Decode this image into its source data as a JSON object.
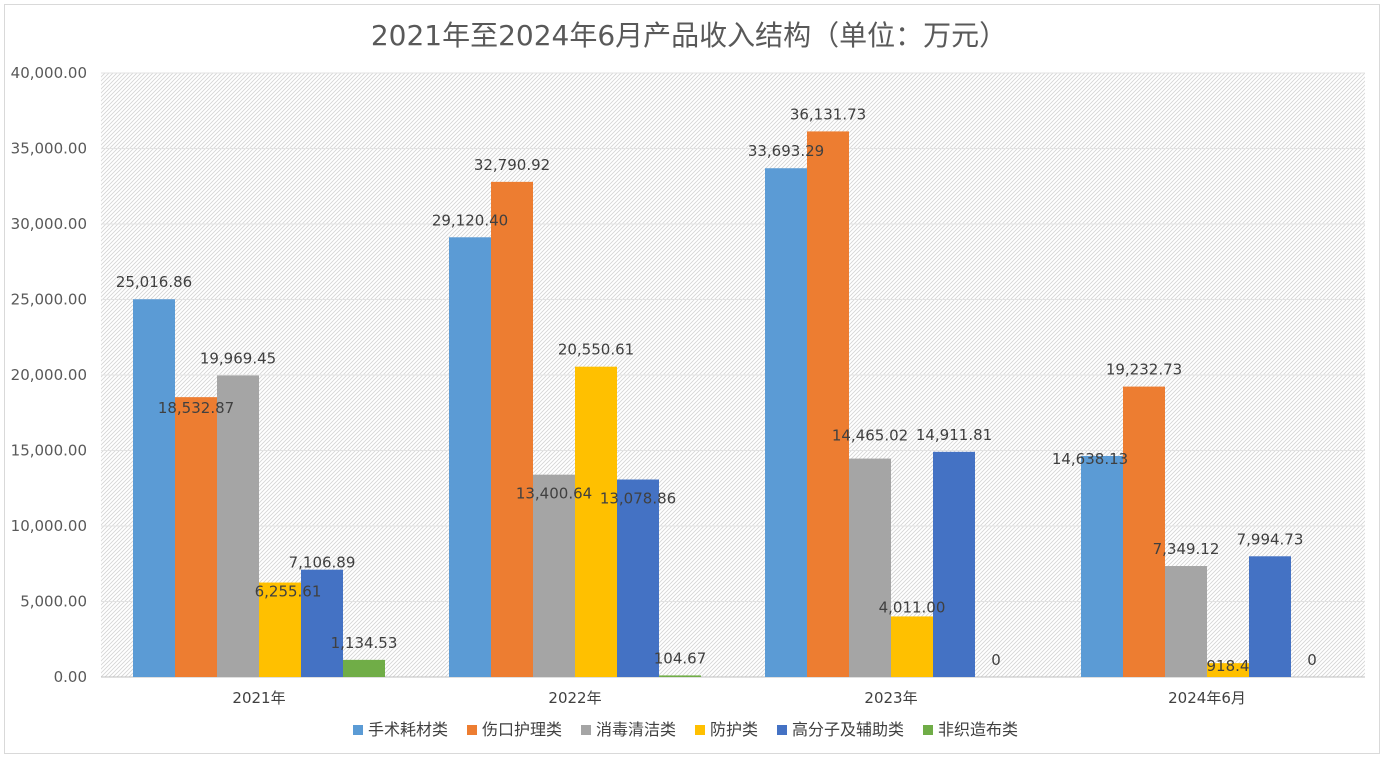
{
  "chart_data": {
    "type": "bar",
    "title": "2021年至2024年6月产品收入结构（单位：万元）",
    "xlabel": "",
    "ylabel": "",
    "ylim": [
      0,
      40000
    ],
    "yticks": [
      0,
      5000,
      10000,
      15000,
      20000,
      25000,
      30000,
      35000,
      40000
    ],
    "ytick_labels": [
      "0.00",
      "5,000.00",
      "10,000.00",
      "15,000.00",
      "20,000.00",
      "25,000.00",
      "30,000.00",
      "35,000.00",
      "40,000.00"
    ],
    "grid": true,
    "legend_position": "bottom",
    "categories": [
      "2021年",
      "2022年",
      "2023年",
      "2024年6月"
    ],
    "series": [
      {
        "name": "手术耗材类",
        "color": "#5B9BD5",
        "values": [
          25016.86,
          29120.4,
          33693.29,
          14638.13
        ],
        "labels": [
          "25,016.86",
          "29,120.40",
          "33,693.29",
          "14,638.13"
        ]
      },
      {
        "name": "伤口护理类",
        "color": "#ED7D31",
        "values": [
          18532.87,
          32790.92,
          36131.73,
          19232.73
        ],
        "labels": [
          "18,532.87",
          "32,790.92",
          "36,131.73",
          "19,232.73"
        ]
      },
      {
        "name": "消毒清洁类",
        "color": "#A5A5A5",
        "values": [
          19969.45,
          13400.64,
          14465.02,
          7349.12
        ],
        "labels": [
          "19,969.45",
          "13,400.64",
          "14,465.02",
          "7,349.12"
        ]
      },
      {
        "name": "防护类",
        "color": "#FFC000",
        "values": [
          6255.61,
          20550.61,
          4011.0,
          918.4
        ],
        "labels": [
          "6,255.61",
          "20,550.61",
          "4,011.00",
          "918.4"
        ]
      },
      {
        "name": "高分子及辅助类",
        "color": "#4472C4",
        "values": [
          7106.89,
          13078.86,
          14911.81,
          7994.73
        ],
        "labels": [
          "7,106.89",
          "13,078.86",
          "14,911.81",
          "7,994.73"
        ]
      },
      {
        "name": "非织造布类",
        "color": "#70AD47",
        "values": [
          1134.53,
          104.67,
          0,
          0
        ],
        "labels": [
          "1,134.53",
          "104.67",
          "0",
          "0"
        ]
      }
    ]
  }
}
